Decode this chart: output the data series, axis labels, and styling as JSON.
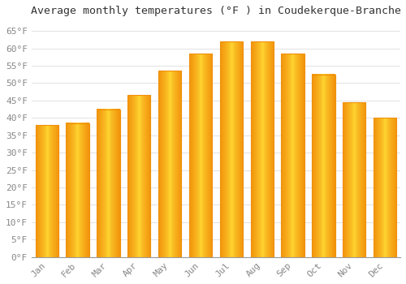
{
  "title": "Average monthly temperatures (°F ) in Coudekerque-Branche",
  "months": [
    "Jan",
    "Feb",
    "Mar",
    "Apr",
    "May",
    "Jun",
    "Jul",
    "Aug",
    "Sep",
    "Oct",
    "Nov",
    "Dec"
  ],
  "values": [
    38,
    38.5,
    42.5,
    46.5,
    53.5,
    58.5,
    62,
    62,
    58.5,
    52.5,
    44.5,
    40
  ],
  "bar_color_center": "#FFD040",
  "bar_color_edge": "#F0900A",
  "background_color": "#FFFFFF",
  "grid_color": "#DDDDDD",
  "text_color": "#888888",
  "ylim": [
    0,
    68
  ],
  "yticks": [
    0,
    5,
    10,
    15,
    20,
    25,
    30,
    35,
    40,
    45,
    50,
    55,
    60,
    65
  ],
  "ytick_labels": [
    "0°F",
    "5°F",
    "10°F",
    "15°F",
    "20°F",
    "25°F",
    "30°F",
    "35°F",
    "40°F",
    "45°F",
    "50°F",
    "55°F",
    "60°F",
    "65°F"
  ],
  "title_fontsize": 9.5,
  "tick_fontsize": 8,
  "bar_width": 0.75
}
